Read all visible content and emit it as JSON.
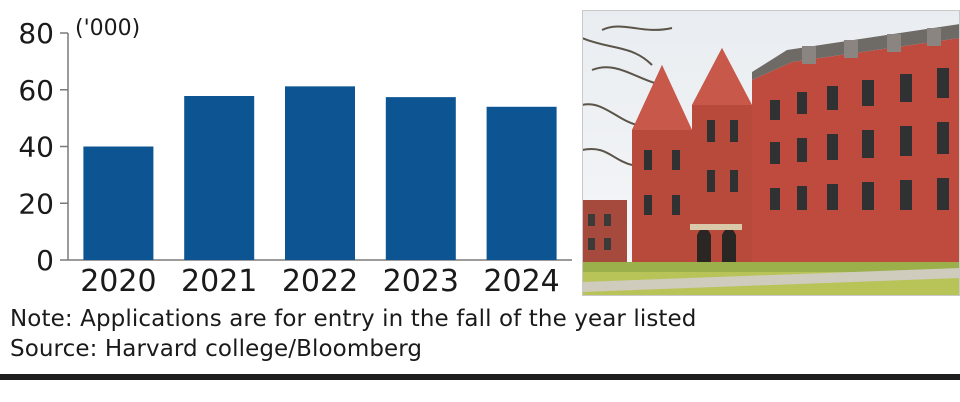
{
  "chart_data": {
    "type": "bar",
    "title": "",
    "unit_label": "('000)",
    "categories": [
      "2020",
      "2021",
      "2022",
      "2023",
      "2024"
    ],
    "values": [
      40,
      57.8,
      61.2,
      57.4,
      54
    ],
    "ylim": [
      0,
      80
    ],
    "yticks": [
      0,
      20,
      40,
      60,
      80
    ],
    "grid": false,
    "colors": {
      "bar": "#0d5592",
      "axis": "#7a7a7a",
      "text": "#1a1a1a"
    }
  },
  "footer": {
    "note": "Note: Applications are for entry in the fall of the year listed",
    "source": "Source: Harvard college/Bloomberg"
  },
  "photo": {
    "icon": "red-brick-campus-building"
  }
}
